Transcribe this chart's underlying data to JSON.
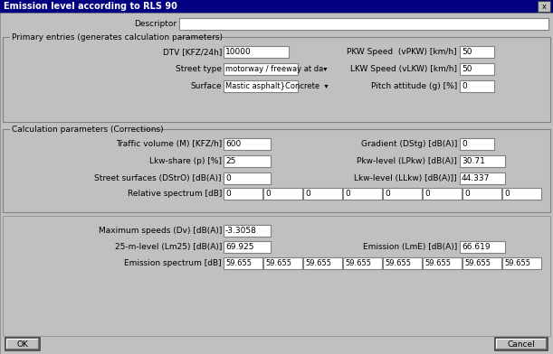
{
  "title": "Emission level according to RLS 90",
  "title_bg": "#000080",
  "title_fg": "#ffffff",
  "dialog_bg": "#c0c0c0",
  "input_bg": "#ffffff",
  "descriptor_label": "Descriptor",
  "descriptor_value": "",
  "group1_title": "Primary entries (generates calculation parameters)",
  "group2_title": "Calculation parameters (Corrections)",
  "primary_fields_left": [
    {
      "label": "DTV [KFZ/24h]",
      "value": "10000"
    },
    {
      "label": "Street type",
      "value": "motorway / freeway at da▾"
    },
    {
      "label": "Surface",
      "value": "Mastic asphalt}Concrete  ▾"
    }
  ],
  "primary_fields_right": [
    {
      "label": "PKW Speed  (vPKW) [km/h]",
      "value": "50"
    },
    {
      "label": "LKW Speed (vLKW) [km/h]",
      "value": "50"
    },
    {
      "label": "Pitch attitude (g) [%]",
      "value": "0"
    }
  ],
  "calc_fields_left": [
    {
      "label": "Traffic volume (M) [KFZ/h]",
      "value": "600"
    },
    {
      "label": "Lkw-share (p) [%]",
      "value": "25"
    },
    {
      "label": "Street surfaces (DStrO) [dB(A)]",
      "value": "0"
    }
  ],
  "calc_fields_right": [
    {
      "label": "Gradient (DStg) [dB(A)]",
      "value": "0"
    },
    {
      "label": "Pkw-level (LPkw) [dB(A)]",
      "value": "30.71"
    },
    {
      "label": "Lkw-level (LLkw) [dB(A)]]",
      "value": "44.337"
    }
  ],
  "relative_spectrum_label": "Relative spectrum [dB]",
  "relative_spectrum_values": [
    "0",
    "0",
    "0",
    "0",
    "0",
    "0",
    "0",
    "0"
  ],
  "max_speeds_label": "Maximum speeds (Dv) [dB(A)]",
  "max_speeds_value": "-3.3058",
  "lm25_label": "25-m-level (Lm25) [dB(A)]",
  "lm25_value": "69.925",
  "emission_label": "Emission (LmE) [dB(A)]",
  "emission_value": "66.619",
  "emission_spectrum_label": "Emission spectrum [dB]",
  "emission_spectrum_values": [
    "59.655",
    "59.655",
    "59.655",
    "59.655",
    "59.655",
    "59.655",
    "59.655",
    "59.655"
  ],
  "ok_label": "OK",
  "cancel_label": "Cancel"
}
